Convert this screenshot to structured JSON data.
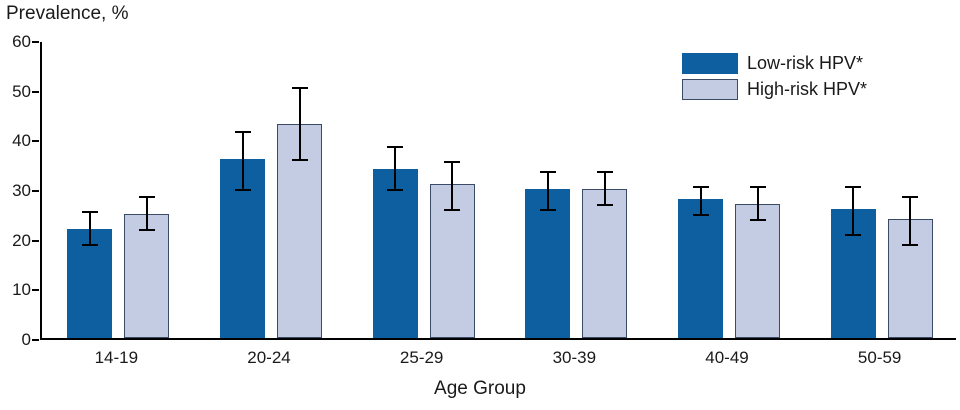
{
  "chart_data": {
    "type": "bar",
    "title": "Prevalence, %",
    "ylabel": "Prevalence, %",
    "xlabel": "Age Group",
    "ylim": [
      0,
      60
    ],
    "yticks": [
      0,
      10,
      20,
      30,
      40,
      50,
      60
    ],
    "grid": false,
    "legend_position": "top-right",
    "categories": [
      "14-19",
      "20-24",
      "25-29",
      "30-39",
      "40-49",
      "50-59"
    ],
    "series": [
      {
        "name": "Low-risk HPV*",
        "color": "#0e5fa0",
        "border": "none",
        "values": [
          22,
          36,
          34,
          30,
          28,
          26
        ],
        "err_low": [
          19,
          30,
          30,
          26,
          25,
          21
        ],
        "err_high": [
          26,
          42,
          39,
          34,
          31,
          31
        ]
      },
      {
        "name": "High-risk HPV*",
        "color": "#c4cce3",
        "border": "#3b4a67",
        "values": [
          25,
          43,
          31,
          30,
          27,
          24
        ],
        "err_low": [
          22,
          36,
          26,
          27,
          24,
          19
        ],
        "err_high": [
          29,
          51,
          36,
          34,
          31,
          29
        ]
      }
    ]
  }
}
